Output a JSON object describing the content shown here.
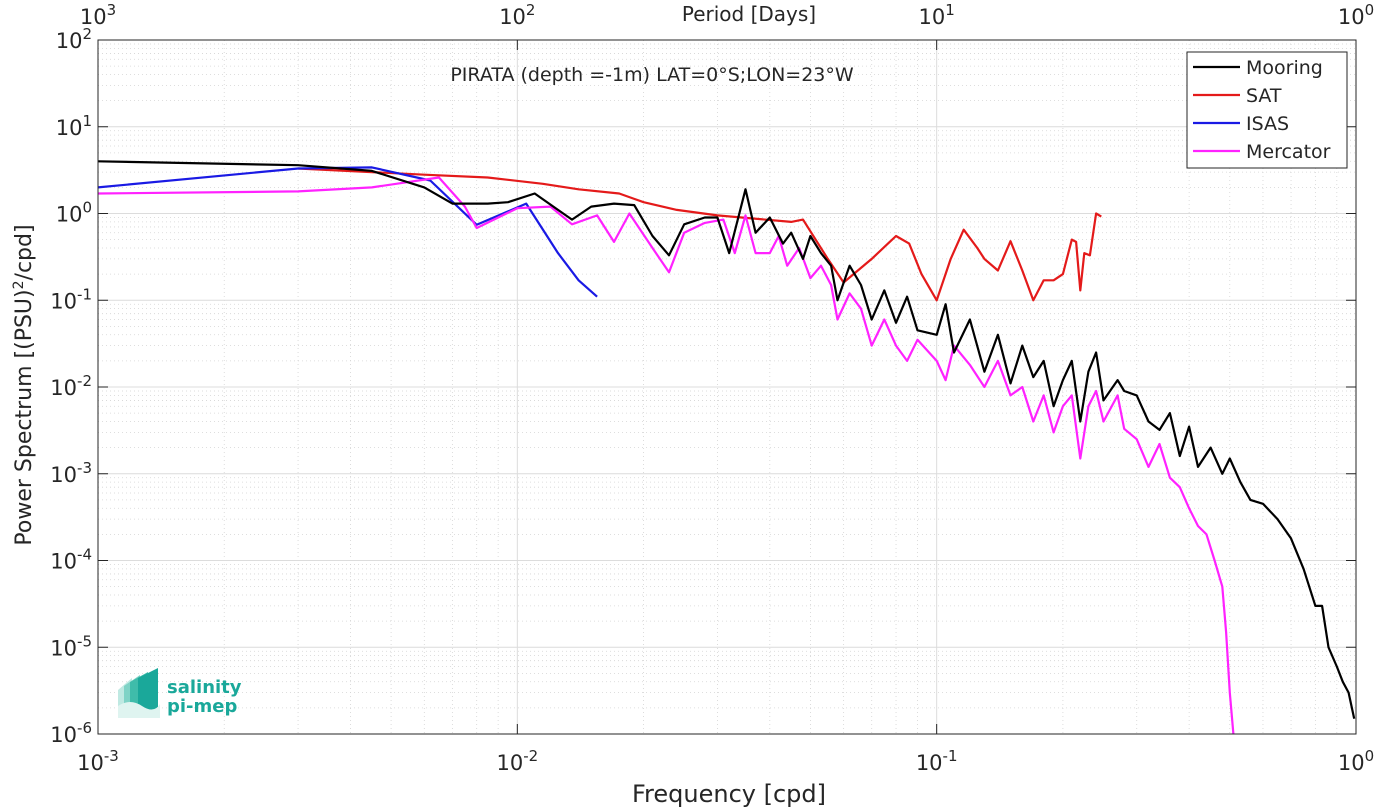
{
  "chart_data": {
    "type": "line",
    "title": "PIRATA (depth =-1m) LAT=0°S;LON=23°W",
    "xlabel": "Frequency [cpd]",
    "ylabel_main": "Power Spectrum [(PSU)",
    "ylabel_sup": "2",
    "ylabel_tail": "/cpd]",
    "top_xlabel": "Period [Days]",
    "xscale": "log",
    "yscale": "log",
    "xlim": [
      0.001,
      1
    ],
    "ylim": [
      1e-06,
      100
    ],
    "grid": true,
    "legend_position": "top-right",
    "x_ticks": [
      {
        "value": 0.001,
        "base": "10",
        "exp": "-3"
      },
      {
        "value": 0.01,
        "base": "10",
        "exp": "-2"
      },
      {
        "value": 0.1,
        "base": "10",
        "exp": "-1"
      },
      {
        "value": 1,
        "base": "10",
        "exp": "0"
      }
    ],
    "top_ticks": [
      {
        "value": 0.001,
        "base": "10",
        "exp": "3"
      },
      {
        "value": 0.01,
        "base": "10",
        "exp": "2"
      },
      {
        "value": 0.1,
        "base": "10",
        "exp": "1"
      },
      {
        "value": 1,
        "base": "10",
        "exp": "0"
      }
    ],
    "y_ticks": [
      {
        "value": 100,
        "base": "10",
        "exp": "2"
      },
      {
        "value": 10,
        "base": "10",
        "exp": "1"
      },
      {
        "value": 1,
        "base": "10",
        "exp": "0"
      },
      {
        "value": 0.1,
        "base": "10",
        "exp": "-1"
      },
      {
        "value": 0.01,
        "base": "10",
        "exp": "-2"
      },
      {
        "value": 0.001,
        "base": "10",
        "exp": "-3"
      },
      {
        "value": 0.0001,
        "base": "10",
        "exp": "-4"
      },
      {
        "value": 1e-05,
        "base": "10",
        "exp": "-5"
      },
      {
        "value": 1e-06,
        "base": "10",
        "exp": "-6"
      }
    ],
    "series": [
      {
        "name": "Mooring",
        "color": "#000000",
        "points": [
          [
            0.001,
            4.0
          ],
          [
            0.003,
            3.6
          ],
          [
            0.0045,
            3.1
          ],
          [
            0.006,
            2.0
          ],
          [
            0.007,
            1.3
          ],
          [
            0.0085,
            1.3
          ],
          [
            0.0095,
            1.35
          ],
          [
            0.011,
            1.7
          ],
          [
            0.0125,
            1.1
          ],
          [
            0.0135,
            0.85
          ],
          [
            0.015,
            1.2
          ],
          [
            0.017,
            1.3
          ],
          [
            0.019,
            1.25
          ],
          [
            0.021,
            0.55
          ],
          [
            0.023,
            0.33
          ],
          [
            0.025,
            0.75
          ],
          [
            0.028,
            0.9
          ],
          [
            0.03,
            0.9
          ],
          [
            0.032,
            0.35
          ],
          [
            0.035,
            1.9
          ],
          [
            0.037,
            0.6
          ],
          [
            0.04,
            0.9
          ],
          [
            0.043,
            0.45
          ],
          [
            0.045,
            0.6
          ],
          [
            0.048,
            0.3
          ],
          [
            0.05,
            0.55
          ],
          [
            0.053,
            0.35
          ],
          [
            0.056,
            0.25
          ],
          [
            0.058,
            0.1
          ],
          [
            0.062,
            0.25
          ],
          [
            0.066,
            0.15
          ],
          [
            0.07,
            0.06
          ],
          [
            0.075,
            0.13
          ],
          [
            0.08,
            0.055
          ],
          [
            0.085,
            0.11
          ],
          [
            0.09,
            0.045
          ],
          [
            0.1,
            0.04
          ],
          [
            0.105,
            0.09
          ],
          [
            0.11,
            0.025
          ],
          [
            0.12,
            0.06
          ],
          [
            0.13,
            0.015
          ],
          [
            0.14,
            0.04
          ],
          [
            0.15,
            0.011
          ],
          [
            0.16,
            0.03
          ],
          [
            0.17,
            0.013
          ],
          [
            0.18,
            0.02
          ],
          [
            0.19,
            0.006
          ],
          [
            0.2,
            0.012
          ],
          [
            0.21,
            0.02
          ],
          [
            0.22,
            0.004
          ],
          [
            0.23,
            0.015
          ],
          [
            0.24,
            0.025
          ],
          [
            0.25,
            0.007
          ],
          [
            0.27,
            0.012
          ],
          [
            0.28,
            0.009
          ],
          [
            0.3,
            0.008
          ],
          [
            0.32,
            0.004
          ],
          [
            0.34,
            0.0032
          ],
          [
            0.36,
            0.005
          ],
          [
            0.38,
            0.0016
          ],
          [
            0.4,
            0.0035
          ],
          [
            0.42,
            0.0012
          ],
          [
            0.45,
            0.002
          ],
          [
            0.48,
            0.001
          ],
          [
            0.5,
            0.0015
          ],
          [
            0.53,
            0.0008
          ],
          [
            0.56,
            0.0005
          ],
          [
            0.6,
            0.00045
          ],
          [
            0.65,
            0.0003
          ],
          [
            0.7,
            0.00018
          ],
          [
            0.75,
            8e-05
          ],
          [
            0.8,
            3e-05
          ],
          [
            0.83,
            3e-05
          ],
          [
            0.86,
            1e-05
          ],
          [
            0.9,
            6e-06
          ],
          [
            0.93,
            4e-06
          ],
          [
            0.96,
            3e-06
          ],
          [
            0.99,
            1.5e-06
          ]
        ]
      },
      {
        "name": "SAT",
        "color": "#e41a1a",
        "points": [
          [
            0.003,
            3.3
          ],
          [
            0.006,
            2.8
          ],
          [
            0.0085,
            2.6
          ],
          [
            0.0115,
            2.2
          ],
          [
            0.014,
            1.9
          ],
          [
            0.0175,
            1.7
          ],
          [
            0.02,
            1.35
          ],
          [
            0.024,
            1.1
          ],
          [
            0.03,
            0.95
          ],
          [
            0.045,
            0.8
          ],
          [
            0.048,
            0.85
          ],
          [
            0.055,
            0.3
          ],
          [
            0.06,
            0.16
          ],
          [
            0.07,
            0.3
          ],
          [
            0.08,
            0.55
          ],
          [
            0.086,
            0.45
          ],
          [
            0.092,
            0.2
          ],
          [
            0.1,
            0.1
          ],
          [
            0.108,
            0.3
          ],
          [
            0.116,
            0.65
          ],
          [
            0.125,
            0.4
          ],
          [
            0.13,
            0.3
          ],
          [
            0.14,
            0.22
          ],
          [
            0.15,
            0.48
          ],
          [
            0.16,
            0.22
          ],
          [
            0.17,
            0.1
          ],
          [
            0.18,
            0.17
          ],
          [
            0.19,
            0.17
          ],
          [
            0.2,
            0.2
          ],
          [
            0.21,
            0.5
          ],
          [
            0.215,
            0.47
          ],
          [
            0.22,
            0.13
          ],
          [
            0.225,
            0.35
          ],
          [
            0.232,
            0.33
          ],
          [
            0.24,
            1.0
          ],
          [
            0.247,
            0.92
          ]
        ]
      },
      {
        "name": "ISAS",
        "color": "#1a1ae4",
        "points": [
          [
            0.001,
            2.0
          ],
          [
            0.003,
            3.3
          ],
          [
            0.0045,
            3.4
          ],
          [
            0.0062,
            2.4
          ],
          [
            0.008,
            0.74
          ],
          [
            0.0105,
            1.3
          ],
          [
            0.0125,
            0.35
          ],
          [
            0.014,
            0.17
          ],
          [
            0.0155,
            0.11
          ]
        ]
      },
      {
        "name": "Mercator",
        "color": "#ff22ff",
        "points": [
          [
            0.001,
            1.7
          ],
          [
            0.003,
            1.8
          ],
          [
            0.0045,
            2.0
          ],
          [
            0.0065,
            2.6
          ],
          [
            0.0075,
            1.2
          ],
          [
            0.008,
            0.68
          ],
          [
            0.01,
            1.15
          ],
          [
            0.012,
            1.2
          ],
          [
            0.0135,
            0.75
          ],
          [
            0.0155,
            0.95
          ],
          [
            0.017,
            0.47
          ],
          [
            0.0185,
            1.0
          ],
          [
            0.021,
            0.4
          ],
          [
            0.023,
            0.21
          ],
          [
            0.025,
            0.6
          ],
          [
            0.028,
            0.78
          ],
          [
            0.031,
            0.85
          ],
          [
            0.033,
            0.35
          ],
          [
            0.035,
            0.95
          ],
          [
            0.037,
            0.35
          ],
          [
            0.04,
            0.35
          ],
          [
            0.042,
            0.55
          ],
          [
            0.044,
            0.25
          ],
          [
            0.047,
            0.4
          ],
          [
            0.05,
            0.18
          ],
          [
            0.053,
            0.25
          ],
          [
            0.056,
            0.15
          ],
          [
            0.058,
            0.06
          ],
          [
            0.062,
            0.12
          ],
          [
            0.066,
            0.08
          ],
          [
            0.07,
            0.03
          ],
          [
            0.075,
            0.06
          ],
          [
            0.08,
            0.03
          ],
          [
            0.085,
            0.02
          ],
          [
            0.09,
            0.035
          ],
          [
            0.1,
            0.02
          ],
          [
            0.105,
            0.012
          ],
          [
            0.11,
            0.03
          ],
          [
            0.12,
            0.018
          ],
          [
            0.13,
            0.01
          ],
          [
            0.14,
            0.02
          ],
          [
            0.15,
            0.008
          ],
          [
            0.16,
            0.01
          ],
          [
            0.17,
            0.004
          ],
          [
            0.18,
            0.008
          ],
          [
            0.19,
            0.003
          ],
          [
            0.2,
            0.006
          ],
          [
            0.21,
            0.008
          ],
          [
            0.22,
            0.0015
          ],
          [
            0.23,
            0.006
          ],
          [
            0.24,
            0.009
          ],
          [
            0.25,
            0.004
          ],
          [
            0.27,
            0.008
          ],
          [
            0.28,
            0.0033
          ],
          [
            0.3,
            0.0025
          ],
          [
            0.32,
            0.0012
          ],
          [
            0.34,
            0.0022
          ],
          [
            0.36,
            0.0009
          ],
          [
            0.38,
            0.0007
          ],
          [
            0.4,
            0.0004
          ],
          [
            0.42,
            0.00025
          ],
          [
            0.44,
            0.0002
          ],
          [
            0.46,
            0.0001
          ],
          [
            0.48,
            5e-05
          ],
          [
            0.49,
            1.5e-05
          ],
          [
            0.5,
            3e-06
          ],
          [
            0.51,
            1e-06
          ]
        ]
      }
    ]
  },
  "logo": {
    "line1": "salinity",
    "line2": "pi-mep",
    "color": "#1aa89a"
  }
}
